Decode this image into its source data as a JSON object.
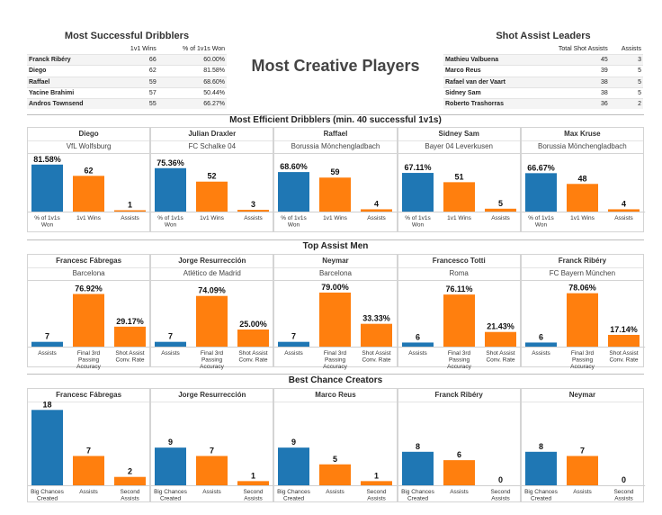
{
  "main_title": "Most Creative Players",
  "colors": {
    "blue": "#1f77b4",
    "orange": "#ff7f0e"
  },
  "dribblers_table": {
    "title": "Most Successful Dribblers",
    "headers": [
      "",
      "1v1 Wins",
      "% of 1v1s Won"
    ],
    "rows": [
      [
        "Franck Ribéry",
        "66",
        "60.00%"
      ],
      [
        "Diego",
        "62",
        "81.58%"
      ],
      [
        "Raffael",
        "59",
        "68.60%"
      ],
      [
        "Yacine Brahimi",
        "57",
        "50.44%"
      ],
      [
        "Andros Townsend",
        "55",
        "66.27%"
      ]
    ]
  },
  "shot_assist_table": {
    "title": "Shot Assist Leaders",
    "headers": [
      "",
      "Total Shot Assists",
      "Assists"
    ],
    "rows": [
      [
        "Mathieu Valbuena",
        "45",
        "3"
      ],
      [
        "Marco Reus",
        "39",
        "5"
      ],
      [
        "Rafael van der Vaart",
        "38",
        "5"
      ],
      [
        "Sidney Sam",
        "38",
        "5"
      ],
      [
        "Roberto Trashorras",
        "36",
        "2"
      ]
    ]
  },
  "chart_data": [
    {
      "type": "bar",
      "title": "Most Efficient Dribblers (min. 40 successful 1v1s)",
      "ymax": 100,
      "categories": [
        [
          "% of 1v1s",
          "Won"
        ],
        [
          "1v1 Wins"
        ],
        [
          "Assists"
        ]
      ],
      "panels": [
        {
          "player": "Diego",
          "club": "VfL Wolfsburg",
          "values": [
            81.58,
            62,
            1
          ],
          "labels": [
            "81.58%",
            "62",
            "1"
          ]
        },
        {
          "player": "Julian Draxler",
          "club": "FC Schalke 04",
          "values": [
            75.36,
            52,
            3
          ],
          "labels": [
            "75.36%",
            "52",
            "3"
          ]
        },
        {
          "player": "Raffael",
          "club": "Borussia Mönchengladbach",
          "values": [
            68.6,
            59,
            4
          ],
          "labels": [
            "68.60%",
            "59",
            "4"
          ]
        },
        {
          "player": "Sidney Sam",
          "club": "Bayer 04 Leverkusen",
          "values": [
            67.11,
            51,
            5
          ],
          "labels": [
            "67.11%",
            "51",
            "5"
          ]
        },
        {
          "player": "Max Kruse",
          "club": "Borussia Mönchengladbach",
          "values": [
            66.67,
            48,
            4
          ],
          "labels": [
            "66.67%",
            "48",
            "4"
          ]
        }
      ]
    },
    {
      "type": "bar",
      "title": "Top Assist Men",
      "ymax": 100,
      "categories": [
        [
          "Assists"
        ],
        [
          "Final 3rd",
          "Passing",
          "Accuracy"
        ],
        [
          "Shot Assist",
          "Conv. Rate"
        ]
      ],
      "panels": [
        {
          "player": "Francesc Fábregas",
          "club": "Barcelona",
          "values": [
            7,
            76.92,
            29.17
          ],
          "labels": [
            "7",
            "76.92%",
            "29.17%"
          ]
        },
        {
          "player": "Jorge Resurrección",
          "club": "Atlético de Madrid",
          "values": [
            7,
            74.09,
            25.0
          ],
          "labels": [
            "7",
            "74.09%",
            "25.00%"
          ]
        },
        {
          "player": "Neymar",
          "club": "Barcelona",
          "values": [
            7,
            79.0,
            33.33
          ],
          "labels": [
            "7",
            "79.00%",
            "33.33%"
          ]
        },
        {
          "player": "Francesco Totti",
          "club": "Roma",
          "values": [
            6,
            76.11,
            21.43
          ],
          "labels": [
            "6",
            "76.11%",
            "21.43%"
          ]
        },
        {
          "player": "Franck Ribéry",
          "club": "FC Bayern München",
          "values": [
            6,
            78.06,
            17.14
          ],
          "labels": [
            "6",
            "78.06%",
            "17.14%"
          ]
        }
      ]
    },
    {
      "type": "bar",
      "title": "Best Chance Creators",
      "ymax": 20,
      "categories": [
        [
          "Big Chances",
          "Created"
        ],
        [
          "Assists"
        ],
        [
          "Second",
          "Assists"
        ]
      ],
      "panels": [
        {
          "player": "Francesc Fábregas",
          "values": [
            18,
            7,
            2
          ],
          "labels": [
            "18",
            "7",
            "2"
          ]
        },
        {
          "player": "Jorge Resurrección",
          "values": [
            9,
            7,
            1
          ],
          "labels": [
            "9",
            "7",
            "1"
          ]
        },
        {
          "player": "Marco Reus",
          "values": [
            9,
            5,
            1
          ],
          "labels": [
            "9",
            "5",
            "1"
          ]
        },
        {
          "player": "Franck Ribéry",
          "values": [
            8,
            6,
            0
          ],
          "labels": [
            "8",
            "6",
            "0"
          ]
        },
        {
          "player": "Neymar",
          "values": [
            8,
            7,
            0
          ],
          "labels": [
            "8",
            "7",
            "0"
          ]
        }
      ]
    }
  ]
}
